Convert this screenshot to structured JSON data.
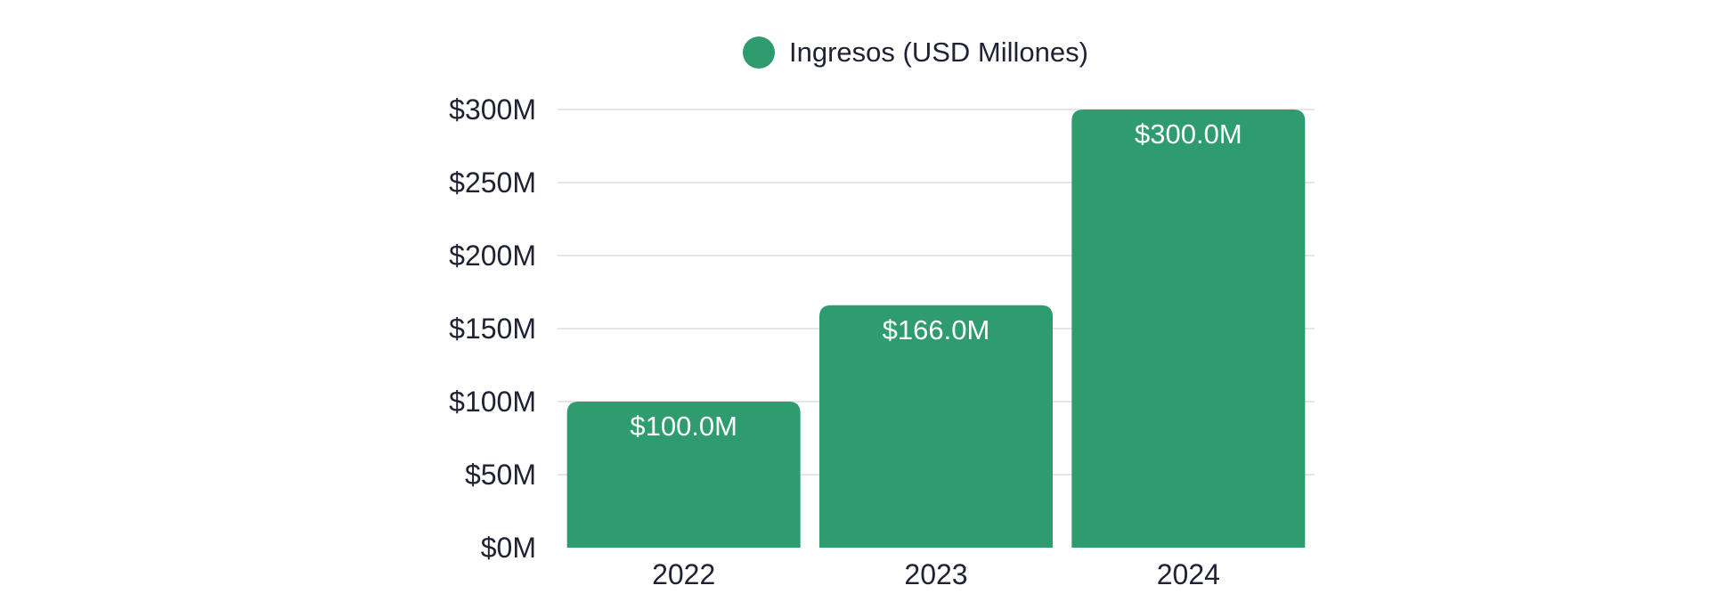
{
  "chart_data": {
    "type": "bar",
    "categories": [
      "2022",
      "2023",
      "2024"
    ],
    "series": [
      {
        "name": "Ingresos (USD Millones)",
        "values": [
          100.0,
          166.0,
          300.0
        ],
        "value_labels": [
          "$100.0M",
          "$166.0M",
          "$300.0M"
        ]
      }
    ],
    "ylim": [
      0,
      300
    ],
    "yticks": [
      0,
      50,
      100,
      150,
      200,
      250,
      300
    ],
    "ytick_labels": [
      "$0M",
      "$50M",
      "$100M",
      "$150M",
      "$200M",
      "$250M",
      "$300M"
    ],
    "grid": true,
    "legend_position": "top-center",
    "colors": {
      "bar": "#2e9c6f",
      "grid": "#dddddd",
      "text": "#1f2233",
      "bar_label": "#ffffff"
    }
  }
}
